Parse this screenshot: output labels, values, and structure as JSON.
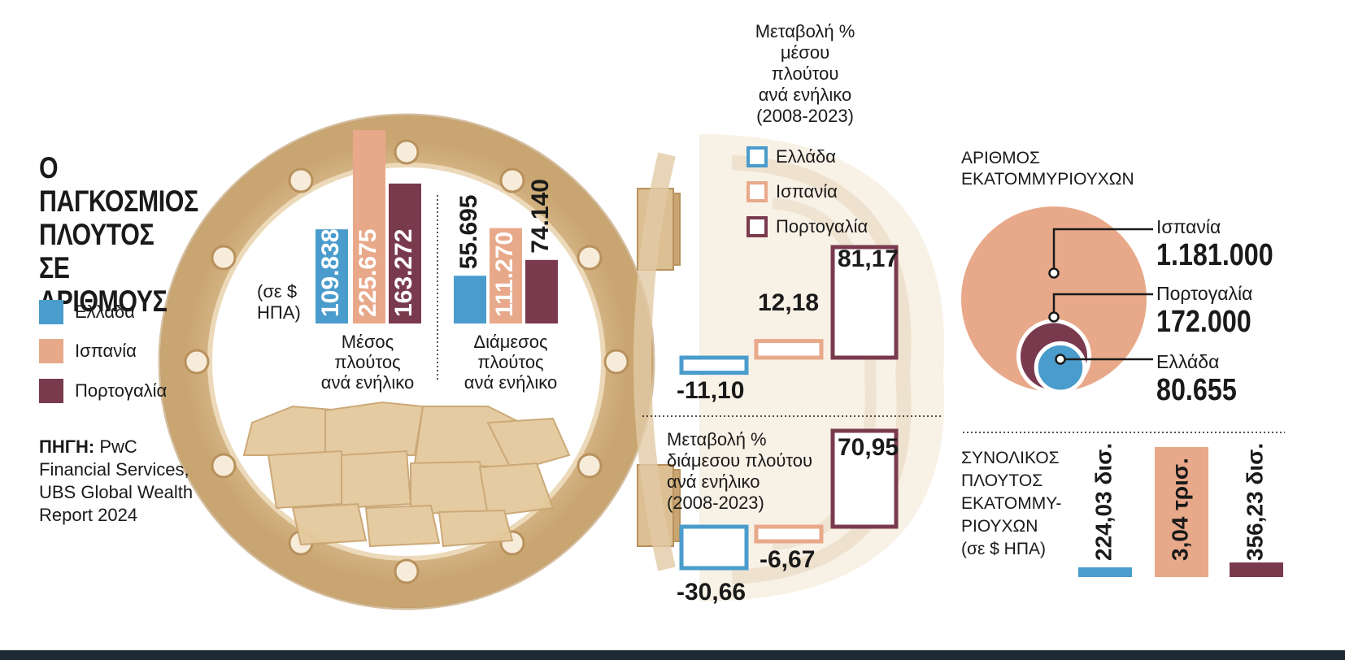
{
  "title_lines": [
    "Ο ΠΑΓΚΟΣΜΙΟΣ",
    "ΠΛΟΥΤΟΣ",
    "ΣΕ",
    "ΑΡΙΘΜΟΥΣ"
  ],
  "legend": [
    {
      "name": "Ελλάδα",
      "color": "#4a9ccc"
    },
    {
      "name": "Ισπανία",
      "color": "#e8a98a"
    },
    {
      "name": "Πορτογαλία",
      "color": "#7a3a4e"
    }
  ],
  "source": {
    "label": "ΠΗΓΗ:",
    "text": "PwC Financial Services, UBS Global Wealth Report 2024"
  },
  "unit_note": "(σε $ ΗΠΑ)",
  "chart_data": [
    {
      "type": "bar",
      "title": "Μέσος πλούτος ανά ενήλικο",
      "categories": [
        "Ελλάδα",
        "Ισπανία",
        "Πορτογαλία"
      ],
      "values": [
        109838,
        225675,
        163272
      ],
      "labels": [
        "109.838",
        "225.675",
        "163.272"
      ],
      "colors": [
        "#4a9ccc",
        "#e8a98a",
        "#7a3a4e"
      ],
      "unit": "(σε $ ΗΠΑ)"
    },
    {
      "type": "bar",
      "title": "Διάμεσος πλούτος ανά ενήλικο",
      "categories": [
        "Ελλάδα",
        "Ισπανία",
        "Πορτογαλία"
      ],
      "values": [
        55695,
        111270,
        74140
      ],
      "labels": [
        "55.695",
        "111.270",
        "74.140"
      ],
      "colors": [
        "#4a9ccc",
        "#e8a98a",
        "#7a3a4e"
      ],
      "unit": "(σε $ ΗΠΑ)"
    },
    {
      "type": "bar",
      "title": "Μεταβολή % μέσου πλούτου ανά ενήλικο (2008-2023)",
      "categories": [
        "Ελλάδα",
        "Ισπανία",
        "Πορτογαλία"
      ],
      "values": [
        -11.1,
        12.18,
        81.17
      ],
      "labels": [
        "-11,10",
        "12,18",
        "81,17"
      ],
      "colors": [
        "#4a9ccc",
        "#e8a98a",
        "#7a3a4e"
      ]
    },
    {
      "type": "bar",
      "title": "Μεταβολή % διάμεσου πλούτου ανά ενήλικο (2008-2023)",
      "categories": [
        "Ελλάδα",
        "Ισπανία",
        "Πορτογαλία"
      ],
      "values": [
        -30.66,
        -6.67,
        70.95
      ],
      "labels": [
        "-30,66",
        "-6,67",
        "70,95"
      ],
      "colors": [
        "#4a9ccc",
        "#e8a98a",
        "#7a3a4e"
      ]
    },
    {
      "type": "bubble",
      "title": "ΑΡΙΘΜΟΣ ΕΚΑΤΟΜΜΥΡΙΟΥΧΩΝ",
      "categories": [
        "Ισπανία",
        "Πορτογαλία",
        "Ελλάδα"
      ],
      "values": [
        1181000,
        172000,
        80655
      ],
      "labels": [
        "1.181.000",
        "172.000",
        "80.655"
      ],
      "colors": [
        "#e8a98a",
        "#7a3a4e",
        "#4a9ccc"
      ]
    },
    {
      "type": "bar",
      "title": "ΣΥΝΟΛΙΚΟΣ ΠΛΟΥΤΟΣ ΕΚΑΤΟΜΜΥ-ΡΙΟΥΧΩΝ (σε $ ΗΠΑ)",
      "categories": [
        "Ελλάδα",
        "Ισπανία",
        "Πορτογαλία"
      ],
      "values_usd_billion": [
        224.03,
        3040,
        356.23
      ],
      "labels": [
        "224,03 δισ.",
        "3,04 τρισ.",
        "356,23 δισ."
      ],
      "colors": [
        "#4a9ccc",
        "#e8a98a",
        "#7a3a4e"
      ]
    }
  ],
  "captions": {
    "mean_lines": [
      "Μέσος",
      "πλούτος",
      "ανά ενήλικο"
    ],
    "median_lines": [
      "Διάμεσος",
      "πλούτος",
      "ανά ενήλικο"
    ],
    "change_mean_lines": [
      "Μεταβολή %",
      "μέσου",
      "πλούτου",
      "ανά ενήλικο",
      "(2008-2023)"
    ],
    "change_median_lines": [
      "Μεταβολή %",
      "διάμεσου πλούτου",
      "ανά ενήλικο",
      "(2008-2023)"
    ],
    "millionaires_lines": [
      "ΑΡΙΘΜΟΣ",
      "ΕΚΑΤΟΜΜΥΡΙΟΥΧΩΝ"
    ],
    "total_lines": [
      "ΣΥΝΟΛΙΚΟΣ",
      "ΠΛΟΥΤΟΣ",
      "ΕΚΑΤΟΜΜΥ-",
      "ΡΙΟΥΧΩΝ",
      "(σε $ ΗΠΑ)"
    ]
  }
}
